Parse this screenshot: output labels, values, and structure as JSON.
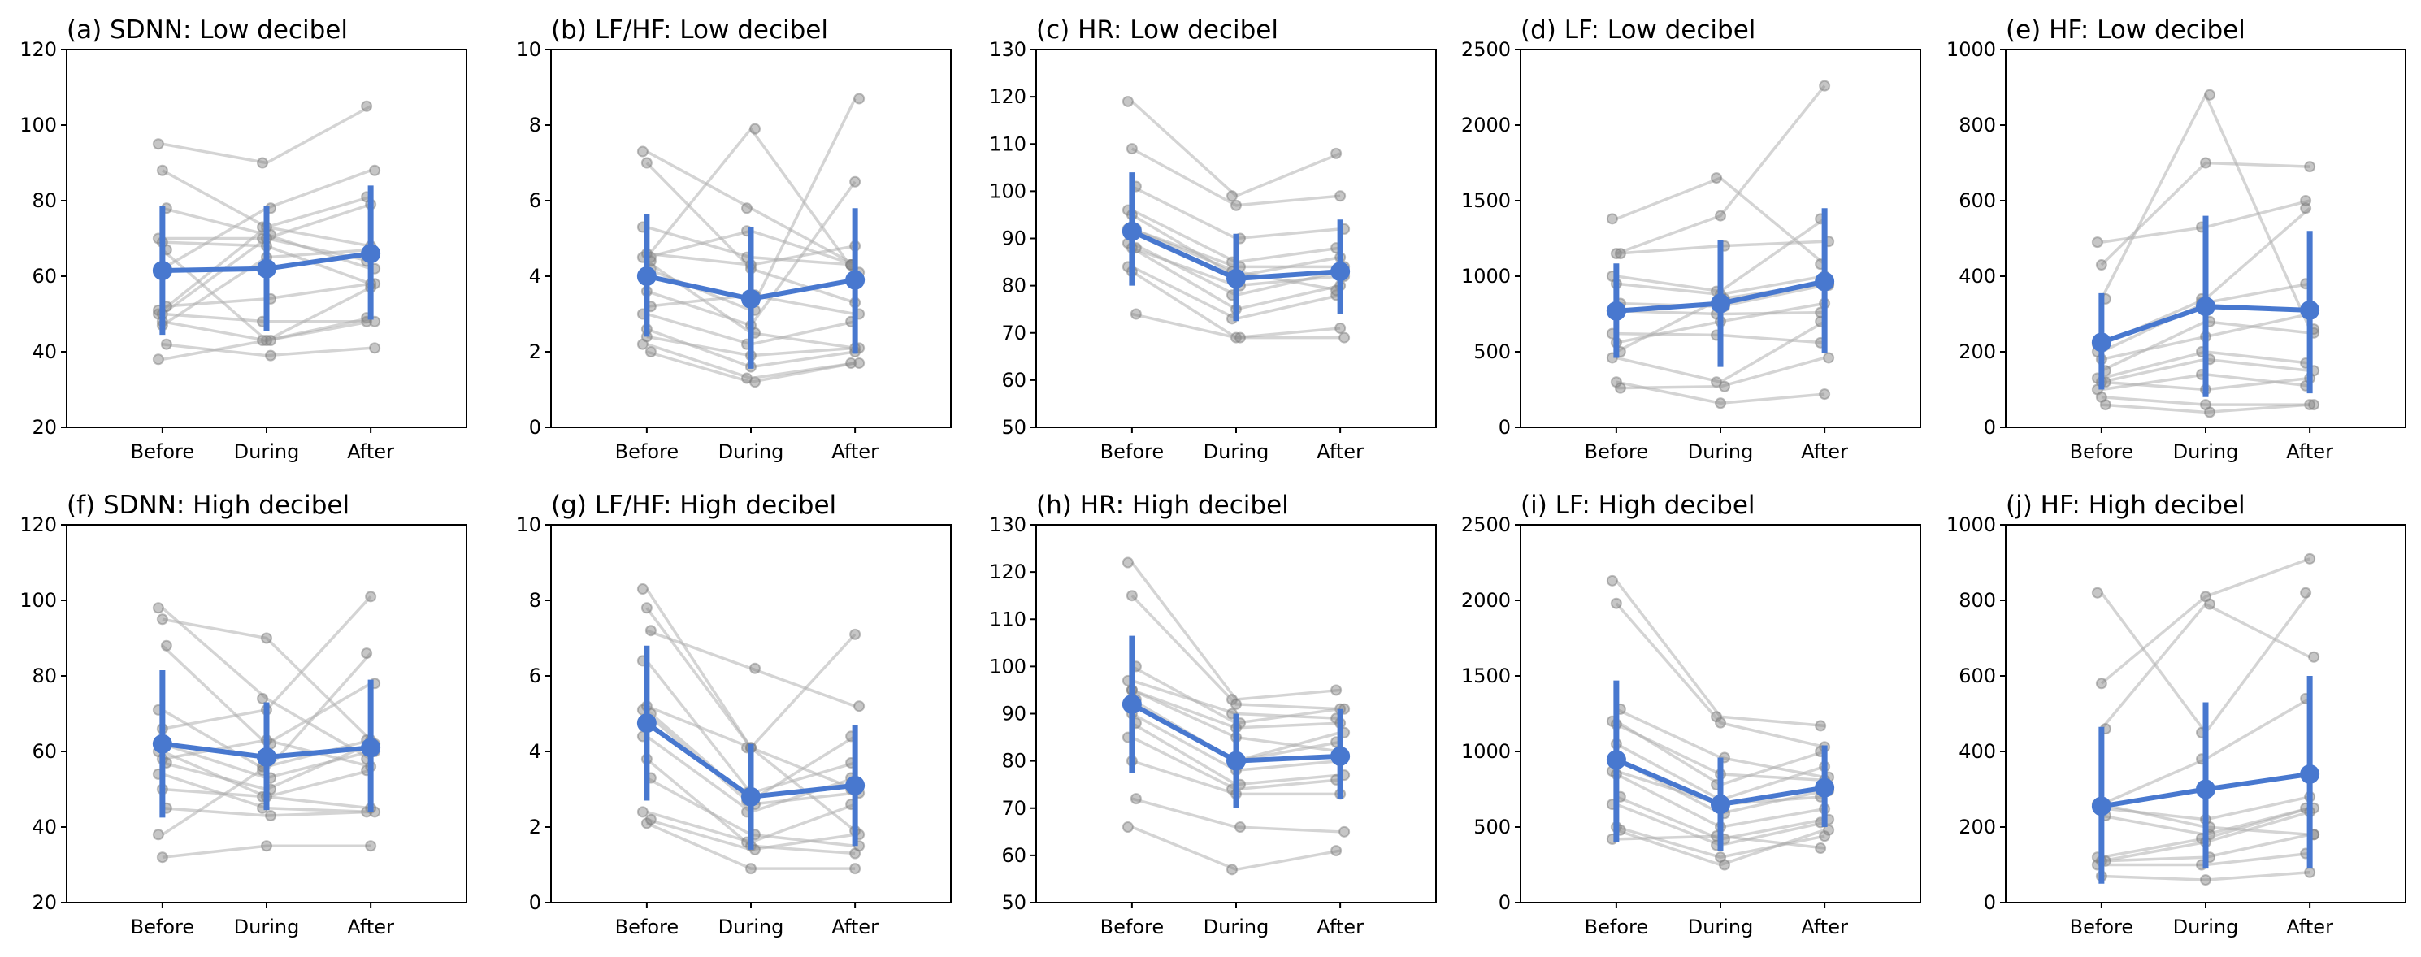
{
  "chart_data": [
    {
      "type": "line",
      "title": "(a) SDNN: Low decibel",
      "categories": [
        "Before",
        "During",
        "After"
      ],
      "ylim": [
        20,
        120
      ],
      "yticks": [
        20,
        40,
        60,
        80,
        100,
        120
      ],
      "grid": false,
      "mean": [
        61.5,
        62,
        66
      ],
      "ci_low": [
        44.5,
        45.5,
        48.5
      ],
      "ci_high": [
        78.5,
        78.5,
        84
      ],
      "subjects": [
        [
          95,
          90,
          105
        ],
        [
          88,
          73,
          68
        ],
        [
          78,
          71,
          62
        ],
        [
          70,
          70,
          64
        ],
        [
          69,
          68,
          58
        ],
        [
          62,
          78,
          88
        ],
        [
          51,
          73,
          81
        ],
        [
          50,
          70,
          79
        ],
        [
          52,
          54,
          58
        ],
        [
          50,
          48,
          48
        ],
        [
          48,
          43,
          57
        ],
        [
          42,
          39,
          41
        ],
        [
          38,
          43,
          49
        ],
        [
          47,
          65,
          67
        ],
        [
          67,
          43,
          48
        ]
      ]
    },
    {
      "type": "line",
      "title": "(b) LF/HF: Low decibel",
      "categories": [
        "Before",
        "During",
        "After"
      ],
      "ylim": [
        0,
        10
      ],
      "yticks": [
        0,
        2,
        4,
        6,
        8,
        10
      ],
      "grid": false,
      "mean": [
        4.0,
        3.4,
        3.9
      ],
      "ci_low": [
        2.4,
        1.55,
        1.95
      ],
      "ci_high": [
        5.65,
        5.3,
        5.8
      ],
      "subjects": [
        [
          7.3,
          5.8,
          4.3
        ],
        [
          7.0,
          4.2,
          3.3
        ],
        [
          4.5,
          7.9,
          4.1
        ],
        [
          4.5,
          5.2,
          4.3
        ],
        [
          4.6,
          4.3,
          4.8
        ],
        [
          4.2,
          3.1,
          8.7
        ],
        [
          5.3,
          4.5,
          4.3
        ],
        [
          3.6,
          2.7,
          6.5
        ],
        [
          3.2,
          3.5,
          3.0
        ],
        [
          3.0,
          2.2,
          2.8
        ],
        [
          2.4,
          1.9,
          2.1
        ],
        [
          2.0,
          1.2,
          1.7
        ],
        [
          2.2,
          1.3,
          1.7
        ],
        [
          2.6,
          1.6,
          2.0
        ],
        [
          4.4,
          2.5,
          2.1
        ]
      ]
    },
    {
      "type": "line",
      "title": "(c) HR: Low decibel",
      "categories": [
        "Before",
        "During",
        "After"
      ],
      "ylim": [
        50,
        130
      ],
      "yticks": [
        50,
        60,
        70,
        80,
        90,
        100,
        110,
        120,
        130
      ],
      "grid": false,
      "mean": [
        91.5,
        81.5,
        83
      ],
      "ci_low": [
        80,
        72.5,
        74
      ],
      "ci_high": [
        104,
        91,
        94
      ],
      "subjects": [
        [
          119,
          99,
          108
        ],
        [
          109,
          97,
          99
        ],
        [
          101,
          90,
          92
        ],
        [
          96,
          85,
          88
        ],
        [
          95,
          82,
          86
        ],
        [
          92,
          84,
          84
        ],
        [
          89,
          78,
          83
        ],
        [
          88,
          75,
          80
        ],
        [
          88,
          80,
          82
        ],
        [
          84,
          73,
          78
        ],
        [
          83,
          69,
          71
        ],
        [
          74,
          69,
          69
        ],
        [
          92,
          83,
          79
        ]
      ]
    },
    {
      "type": "line",
      "title": "(d) LF: Low decibel",
      "categories": [
        "Before",
        "During",
        "After"
      ],
      "ylim": [
        0,
        2500
      ],
      "yticks": [
        0,
        500,
        1000,
        1500,
        2000,
        2500
      ],
      "grid": false,
      "mean": [
        770,
        820,
        965
      ],
      "ci_low": [
        460,
        400,
        490
      ],
      "ci_high": [
        1085,
        1240,
        1450
      ],
      "subjects": [
        [
          1380,
          1650,
          1080
        ],
        [
          1150,
          1400,
          2260
        ],
        [
          1150,
          1200,
          1230
        ],
        [
          1000,
          900,
          1380
        ],
        [
          950,
          880,
          1000
        ],
        [
          820,
          800,
          940
        ],
        [
          770,
          750,
          760
        ],
        [
          560,
          700,
          820
        ],
        [
          500,
          850,
          950
        ],
        [
          460,
          300,
          700
        ],
        [
          300,
          160,
          220
        ],
        [
          260,
          270,
          460
        ],
        [
          620,
          610,
          560
        ]
      ]
    },
    {
      "type": "line",
      "title": "(e) HF: Low decibel",
      "categories": [
        "Before",
        "During",
        "After"
      ],
      "ylim": [
        0,
        1000
      ],
      "yticks": [
        0,
        200,
        400,
        600,
        800,
        1000
      ],
      "grid": false,
      "mean": [
        225,
        320,
        310
      ],
      "ci_low": [
        100,
        80,
        90
      ],
      "ci_high": [
        355,
        560,
        520
      ],
      "subjects": [
        [
          490,
          530,
          600
        ],
        [
          430,
          700,
          690
        ],
        [
          340,
          880,
          260
        ],
        [
          220,
          340,
          580
        ],
        [
          180,
          240,
          300
        ],
        [
          150,
          280,
          250
        ],
        [
          130,
          200,
          170
        ],
        [
          120,
          100,
          130
        ],
        [
          120,
          180,
          150
        ],
        [
          100,
          140,
          110
        ],
        [
          80,
          60,
          60
        ],
        [
          60,
          40,
          60
        ],
        [
          200,
          330,
          380
        ]
      ]
    },
    {
      "type": "line",
      "title": "(f) SDNN: High decibel",
      "categories": [
        "Before",
        "During",
        "After"
      ],
      "ylim": [
        20,
        120
      ],
      "yticks": [
        20,
        40,
        60,
        80,
        100,
        120
      ],
      "grid": false,
      "mean": [
        62,
        58.5,
        61
      ],
      "ci_low": [
        42.5,
        44.5,
        44
      ],
      "ci_high": [
        81.5,
        73,
        79
      ],
      "subjects": [
        [
          98,
          74,
          58
        ],
        [
          95,
          90,
          63
        ],
        [
          88,
          62,
          78
        ],
        [
          71,
          55,
          86
        ],
        [
          66,
          71,
          101
        ],
        [
          62,
          53,
          60
        ],
        [
          60,
          48,
          55
        ],
        [
          58,
          63,
          56
        ],
        [
          57,
          50,
          62
        ],
        [
          54,
          45,
          44
        ],
        [
          50,
          48,
          45
        ],
        [
          45,
          43,
          44
        ],
        [
          38,
          56,
          63
        ],
        [
          32,
          35,
          35
        ]
      ]
    },
    {
      "type": "line",
      "title": "(g) LF/HF: High decibel",
      "categories": [
        "Before",
        "During",
        "After"
      ],
      "ylim": [
        0,
        10
      ],
      "yticks": [
        0,
        2,
        4,
        6,
        8,
        10
      ],
      "grid": false,
      "mean": [
        4.75,
        2.8,
        3.1
      ],
      "ci_low": [
        2.7,
        1.4,
        1.5
      ],
      "ci_high": [
        6.8,
        4.2,
        4.7
      ],
      "subjects": [
        [
          8.3,
          4.1,
          3.0
        ],
        [
          7.8,
          4.1,
          1.9
        ],
        [
          7.2,
          6.2,
          5.2
        ],
        [
          6.4,
          2.9,
          3.7
        ],
        [
          5.2,
          4.1,
          7.1
        ],
        [
          5.0,
          2.6,
          2.9
        ],
        [
          4.4,
          2.4,
          3.3
        ],
        [
          3.8,
          1.5,
          1.3
        ],
        [
          3.3,
          1.8,
          1.5
        ],
        [
          2.4,
          1.6,
          2.6
        ],
        [
          2.1,
          0.9,
          0.9
        ],
        [
          2.2,
          1.4,
          1.8
        ],
        [
          5.1,
          2.7,
          4.4
        ]
      ]
    },
    {
      "type": "line",
      "title": "(h) HR: High decibel",
      "categories": [
        "Before",
        "During",
        "After"
      ],
      "ylim": [
        50,
        130
      ],
      "yticks": [
        50,
        60,
        70,
        80,
        90,
        100,
        110,
        120,
        130
      ],
      "grid": false,
      "mean": [
        92,
        80,
        81
      ],
      "ci_low": [
        77.5,
        70,
        72
      ],
      "ci_high": [
        106.5,
        90,
        91
      ],
      "subjects": [
        [
          122,
          93,
          95
        ],
        [
          115,
          92,
          91
        ],
        [
          100,
          88,
          91
        ],
        [
          97,
          90,
          89
        ],
        [
          95,
          87,
          88
        ],
        [
          93,
          80,
          86
        ],
        [
          92,
          80,
          84
        ],
        [
          90,
          78,
          80
        ],
        [
          88,
          75,
          77
        ],
        [
          85,
          74,
          76
        ],
        [
          80,
          73,
          73
        ],
        [
          72,
          66,
          65
        ],
        [
          66,
          57,
          61
        ],
        [
          95,
          85,
          82
        ]
      ]
    },
    {
      "type": "line",
      "title": "(i) LF: High decibel",
      "categories": [
        "Before",
        "During",
        "After"
      ],
      "ylim": [
        0,
        2500
      ],
      "yticks": [
        0,
        500,
        1000,
        1500,
        2000,
        2500
      ],
      "grid": false,
      "mean": [
        945,
        650,
        760
      ],
      "ci_low": [
        400,
        340,
        500
      ],
      "ci_high": [
        1470,
        960,
        1040
      ],
      "subjects": [
        [
          2130,
          1230,
          1170
        ],
        [
          1980,
          1190,
          1030
        ],
        [
          1280,
          960,
          830
        ],
        [
          1200,
          780,
          1000
        ],
        [
          1050,
          680,
          900
        ],
        [
          950,
          590,
          740
        ],
        [
          870,
          650,
          700
        ],
        [
          850,
          500,
          620
        ],
        [
          700,
          420,
          550
        ],
        [
          650,
          380,
          530
        ],
        [
          500,
          300,
          440
        ],
        [
          480,
          250,
          480
        ],
        [
          420,
          440,
          360
        ],
        [
          1180,
          850,
          810
        ]
      ]
    },
    {
      "type": "line",
      "title": "(j) HF: High decibel",
      "categories": [
        "Before",
        "During",
        "After"
      ],
      "ylim": [
        0,
        1000
      ],
      "yticks": [
        0,
        200,
        400,
        600,
        800,
        1000
      ],
      "grid": false,
      "mean": [
        255,
        300,
        340
      ],
      "ci_low": [
        50,
        90,
        90
      ],
      "ci_high": [
        465,
        530,
        600
      ],
      "subjects": [
        [
          820,
          450,
          820
        ],
        [
          580,
          810,
          910
        ],
        [
          460,
          790,
          650
        ],
        [
          260,
          380,
          540
        ],
        [
          250,
          220,
          280
        ],
        [
          230,
          180,
          250
        ],
        [
          120,
          170,
          250
        ],
        [
          110,
          160,
          240
        ],
        [
          110,
          120,
          180
        ],
        [
          100,
          100,
          130
        ],
        [
          70,
          60,
          80
        ],
        [
          260,
          200,
          180
        ]
      ]
    }
  ],
  "colors": {
    "mean": "#4878cf",
    "subjects": "#a9a9a9"
  }
}
